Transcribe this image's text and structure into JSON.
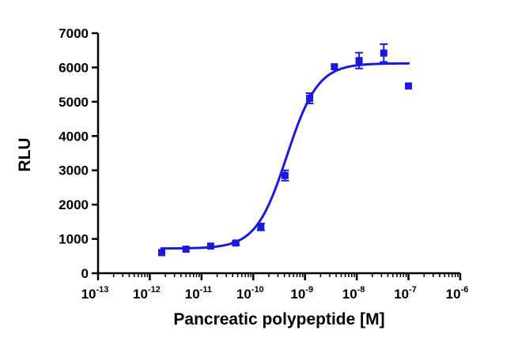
{
  "chart_data": {
    "type": "scatter",
    "title": "",
    "xlabel": "Pancreatic polypeptide [M]",
    "ylabel": "RLU",
    "x_scale": "log",
    "xlim": [
      1e-13,
      1e-06
    ],
    "ylim": [
      0,
      7000
    ],
    "x_ticks": [
      {
        "base": "10",
        "exp": "-13",
        "value": 1e-13
      },
      {
        "base": "10",
        "exp": "-12",
        "value": 1e-12
      },
      {
        "base": "10",
        "exp": "-11",
        "value": 1e-11
      },
      {
        "base": "10",
        "exp": "-10",
        "value": 1e-10
      },
      {
        "base": "10",
        "exp": "-9",
        "value": 1e-09
      },
      {
        "base": "10",
        "exp": "-8",
        "value": 1e-08
      },
      {
        "base": "10",
        "exp": "-7",
        "value": 1e-07
      },
      {
        "base": "10",
        "exp": "-6",
        "value": 1e-06
      }
    ],
    "y_ticks": [
      0,
      1000,
      2000,
      3000,
      4000,
      5000,
      6000,
      7000
    ],
    "grid": false,
    "legend": "none",
    "color": "#1a1adc",
    "points": [
      {
        "x": 1.7e-12,
        "y": 600,
        "err": 0
      },
      {
        "x": 5e-12,
        "y": 700,
        "err": 0
      },
      {
        "x": 1.5e-11,
        "y": 790,
        "err": 0
      },
      {
        "x": 4.6e-11,
        "y": 880,
        "err": 50
      },
      {
        "x": 1.4e-10,
        "y": 1350,
        "err": 100
      },
      {
        "x": 4.1e-10,
        "y": 2850,
        "err": 150
      },
      {
        "x": 1.23e-09,
        "y": 5100,
        "err": 150
      },
      {
        "x": 3.7e-09,
        "y": 6020,
        "err": 0
      },
      {
        "x": 1.11e-08,
        "y": 6200,
        "err": 230
      },
      {
        "x": 3.33e-08,
        "y": 6420,
        "err": 260
      },
      {
        "x": 1e-07,
        "y": 5460,
        "err": 0
      }
    ],
    "fit": {
      "model": "4PL",
      "bottom": 720,
      "top": 6120,
      "log_ec50": -9.35,
      "hill": 1.45,
      "x_range": [
        1.6e-12,
        1.05e-07
      ]
    }
  }
}
